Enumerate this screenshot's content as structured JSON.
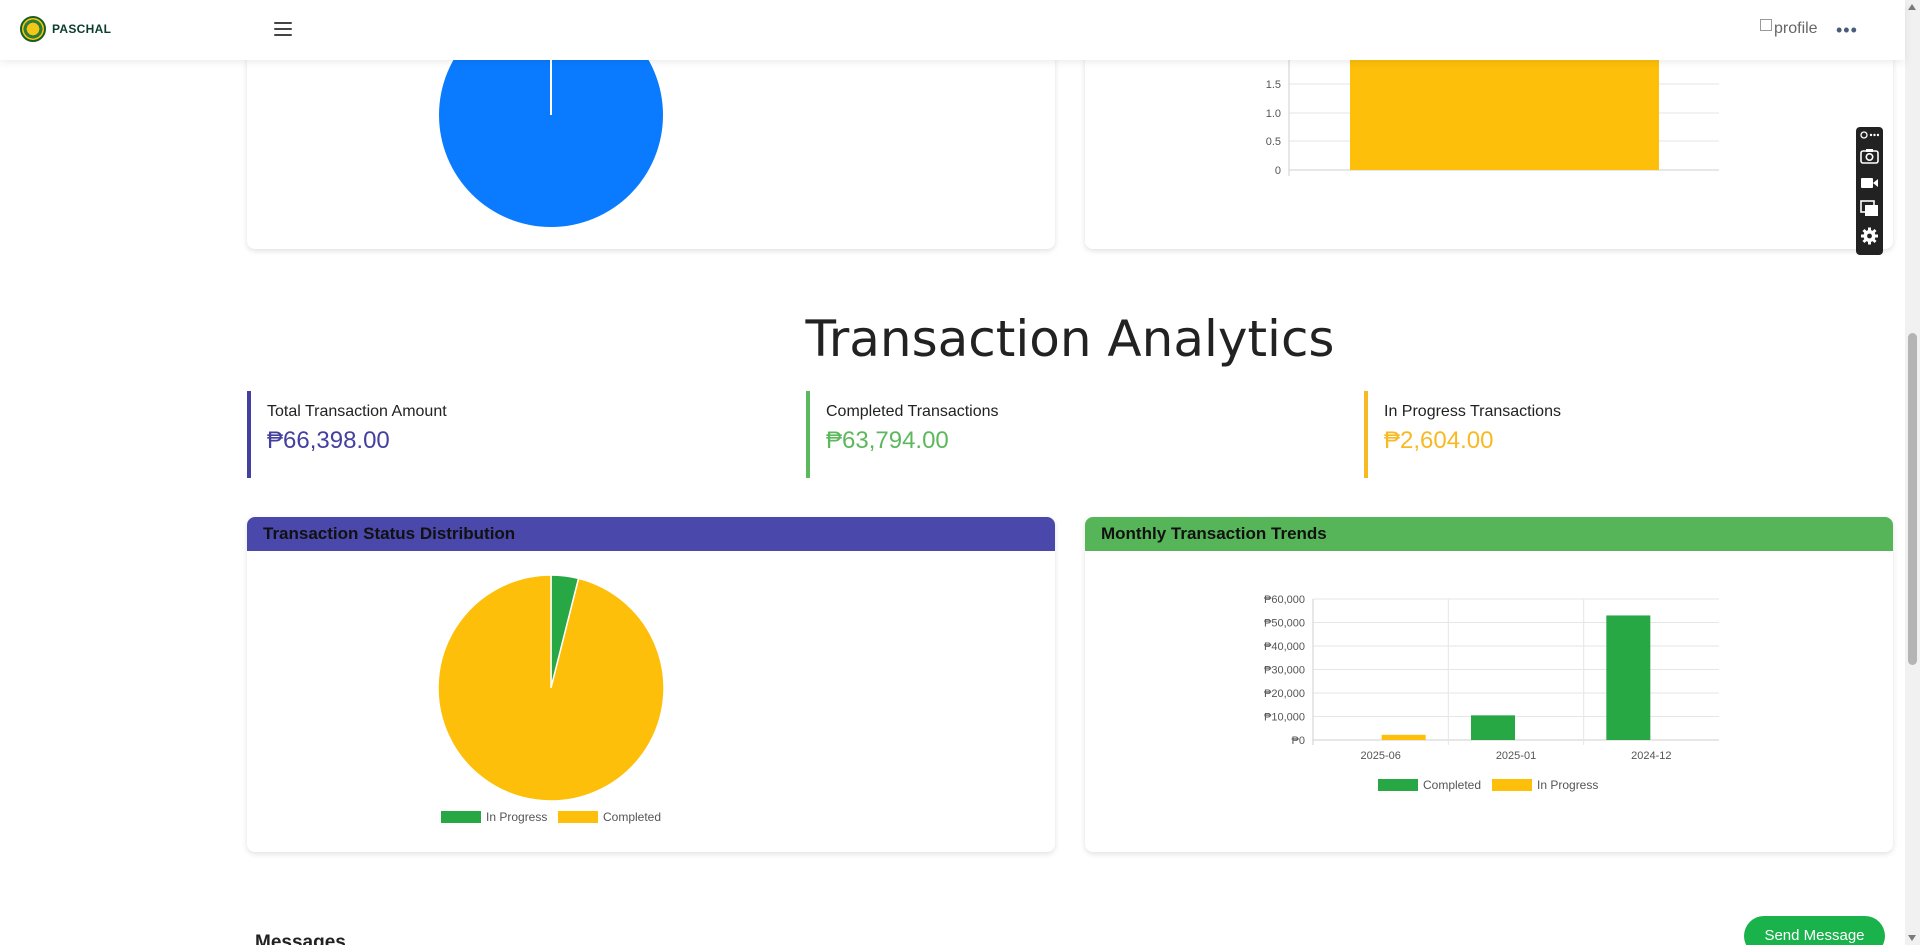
{
  "header": {
    "brand": "PASCHAL",
    "profile_alt": "profile",
    "more": "•••"
  },
  "top_charts": {
    "left_pie_color": "#0a7bff",
    "right_bar": {
      "y_ticks": [
        "1.5",
        "1.0",
        "0.5",
        "0"
      ],
      "bar_color": "#fdbf0a"
    }
  },
  "analytics": {
    "title": "Transaction Analytics",
    "stats": [
      {
        "label": "Total Transaction Amount",
        "value": "₱66,398.00",
        "color": "#4440a0"
      },
      {
        "label": "Completed Transactions",
        "value": "₱63,794.00",
        "color": "#5cb85c"
      },
      {
        "label": "In Progress Transactions",
        "value": "₱2,604.00",
        "color": "#f7b924"
      }
    ]
  },
  "status_chart": {
    "title": "Transaction Status Distribution",
    "colors": {
      "in_progress": "#28a745",
      "completed": "#fdbf0a"
    },
    "legend": [
      "In Progress",
      "Completed"
    ]
  },
  "monthly_chart": {
    "title": "Monthly Transaction Trends",
    "legend": [
      "Completed",
      "In Progress"
    ]
  },
  "chart_data": [
    {
      "type": "pie",
      "title": "Transaction Status Distribution",
      "labels": [
        "In Progress",
        "Completed"
      ],
      "values": [
        2604,
        63794
      ],
      "colors": [
        "#28a745",
        "#fdbf0a"
      ],
      "legend_position": "bottom"
    },
    {
      "type": "bar",
      "title": "Monthly Transaction Trends",
      "categories": [
        "2025-06",
        "2025-01",
        "2024-12"
      ],
      "series": [
        {
          "name": "Completed",
          "values": [
            0,
            10500,
            53000
          ],
          "color": "#28a745"
        },
        {
          "name": "In Progress",
          "values": [
            2200,
            0,
            0
          ],
          "color": "#fdbf0a"
        }
      ],
      "y_ticks": [
        "₱60,000",
        "₱50,000",
        "₱40,000",
        "₱30,000",
        "₱20,000",
        "₱10,000",
        "₱0"
      ],
      "ylim": [
        0,
        60000
      ],
      "legend_position": "bottom"
    }
  ],
  "messages": {
    "title": "Messages",
    "send_button": "Send Message"
  }
}
